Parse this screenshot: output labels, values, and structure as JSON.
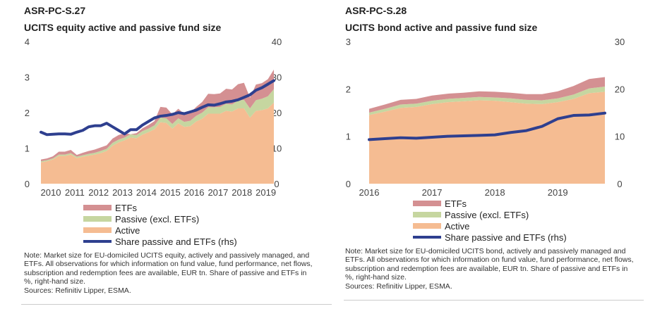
{
  "colors": {
    "active": "#f5bc92",
    "passive": "#c6d6a0",
    "etf": "#d49092",
    "share": "#2e3f8f"
  },
  "legend": {
    "etf": "ETFs",
    "passive": "Passive (excl. ETFs)",
    "active": "Active",
    "share": "Share passive and ETFs (rhs)"
  },
  "chart_data": [
    {
      "type": "area",
      "code": "ASR-PC-S.27",
      "title": "UCITS equity active and passive fund size",
      "x_start": 2010,
      "periods_per_year": 4,
      "xticks": [
        "2010",
        "2011",
        "2012",
        "2013",
        "2014",
        "2015",
        "2016",
        "2017",
        "2018",
        "2019"
      ],
      "ylim": [
        0,
        4
      ],
      "yticks": [
        "0",
        "1",
        "2",
        "3",
        "4"
      ],
      "y2lim": [
        0,
        40
      ],
      "y2ticks": [
        "0",
        "10",
        "20",
        "30",
        "40"
      ],
      "unit": "EUR tn",
      "y2unit": "%",
      "series": [
        {
          "name": "Active",
          "values": [
            0.6,
            0.63,
            0.68,
            0.78,
            0.78,
            0.82,
            0.72,
            0.76,
            0.79,
            0.82,
            0.86,
            0.92,
            1.07,
            1.16,
            1.22,
            1.3,
            1.28,
            1.38,
            1.45,
            1.53,
            1.73,
            1.71,
            1.55,
            1.7,
            1.6,
            1.62,
            1.75,
            1.83,
            1.97,
            1.97,
            1.97,
            2.05,
            2.03,
            2.12,
            2.12,
            1.86,
            2.05,
            2.07,
            2.12,
            2.28
          ]
        },
        {
          "name": "Passive (excl. ETFs)",
          "values": [
            0.03,
            0.03,
            0.03,
            0.04,
            0.04,
            0.04,
            0.04,
            0.04,
            0.05,
            0.05,
            0.06,
            0.06,
            0.08,
            0.08,
            0.08,
            0.09,
            0.09,
            0.1,
            0.1,
            0.11,
            0.13,
            0.13,
            0.13,
            0.14,
            0.14,
            0.15,
            0.16,
            0.17,
            0.18,
            0.18,
            0.19,
            0.2,
            0.2,
            0.22,
            0.24,
            0.26,
            0.3,
            0.32,
            0.34,
            0.38
          ]
        },
        {
          "name": "ETFs",
          "values": [
            0.05,
            0.05,
            0.06,
            0.08,
            0.08,
            0.09,
            0.05,
            0.07,
            0.08,
            0.09,
            0.1,
            0.1,
            0.12,
            0.13,
            0.12,
            0.0,
            0.05,
            0.08,
            0.1,
            0.12,
            0.3,
            0.3,
            0.27,
            0.27,
            0.22,
            0.22,
            0.25,
            0.3,
            0.38,
            0.37,
            0.38,
            0.42,
            0.42,
            0.46,
            0.48,
            0.3,
            0.44,
            0.44,
            0.48,
            0.55
          ]
        },
        {
          "name": "Share passive and ETFs (rhs)",
          "axis": "right",
          "values": [
            14.5,
            13.8,
            13.9,
            14,
            14,
            13.9,
            14.5,
            15,
            16,
            16.3,
            16.3,
            17,
            16,
            15,
            14,
            15.2,
            15.2,
            16.5,
            17.5,
            18.5,
            19,
            19.2,
            19.5,
            20,
            19.7,
            20.2,
            20.7,
            21.5,
            22.2,
            22.1,
            22.5,
            23,
            23.2,
            23.6,
            24.3,
            25,
            26.3,
            27,
            28,
            29
          ]
        }
      ],
      "note": "Note: Market size for EU-domiciled UCITS equity, actively and passively managed, and ETFs. All observations for which information on fund value, fund performance, net flows, subscription and redemption fees are available, EUR tn.  Share of passive and ETFs in %, right-hand size.",
      "sources": "Sources: Refinitiv Lipper, ESMA."
    },
    {
      "type": "area",
      "code": "ASR-PC-S.28",
      "title": "UCITS bond active and passive fund size",
      "x_start": 2016,
      "periods_per_year": 4,
      "xticks": [
        "2016",
        "2017",
        "2018",
        "2019"
      ],
      "ylim": [
        0,
        3
      ],
      "yticks": [
        "0",
        "1",
        "2",
        "3"
      ],
      "y2lim": [
        0,
        30
      ],
      "y2ticks": [
        "0",
        "10",
        "20",
        "30"
      ],
      "unit": "EUR tn",
      "y2unit": "%",
      "series": [
        {
          "name": "Active",
          "values": [
            1.45,
            1.52,
            1.6,
            1.62,
            1.68,
            1.72,
            1.74,
            1.76,
            1.75,
            1.72,
            1.69,
            1.68,
            1.72,
            1.79,
            1.91,
            1.94
          ]
        },
        {
          "name": "Passive (excl. ETFs)",
          "values": [
            0.05,
            0.06,
            0.07,
            0.07,
            0.07,
            0.07,
            0.07,
            0.07,
            0.07,
            0.08,
            0.08,
            0.08,
            0.08,
            0.09,
            0.1,
            0.11
          ]
        },
        {
          "name": "ETFs",
          "values": [
            0.08,
            0.09,
            0.1,
            0.1,
            0.11,
            0.11,
            0.11,
            0.12,
            0.12,
            0.12,
            0.12,
            0.13,
            0.15,
            0.18,
            0.2,
            0.2
          ]
        },
        {
          "name": "Share passive and ETFs (rhs)",
          "axis": "right",
          "values": [
            9.3,
            9.5,
            9.7,
            9.6,
            9.8,
            10,
            10.1,
            10.2,
            10.3,
            10.8,
            11.2,
            12.1,
            13.7,
            14.4,
            14.5,
            14.9
          ]
        }
      ],
      "note": "Note: Market size for EU-domiciled UCITS bond, actively and passively managed and ETFs. All observations for which information on fund value, fund performance, net flows, subscription and redemption fees are available, EUR tn.  Share of passive and ETFs in %, right-hand size.",
      "sources": "Sources: Refinitiv Lipper, ESMA."
    }
  ]
}
